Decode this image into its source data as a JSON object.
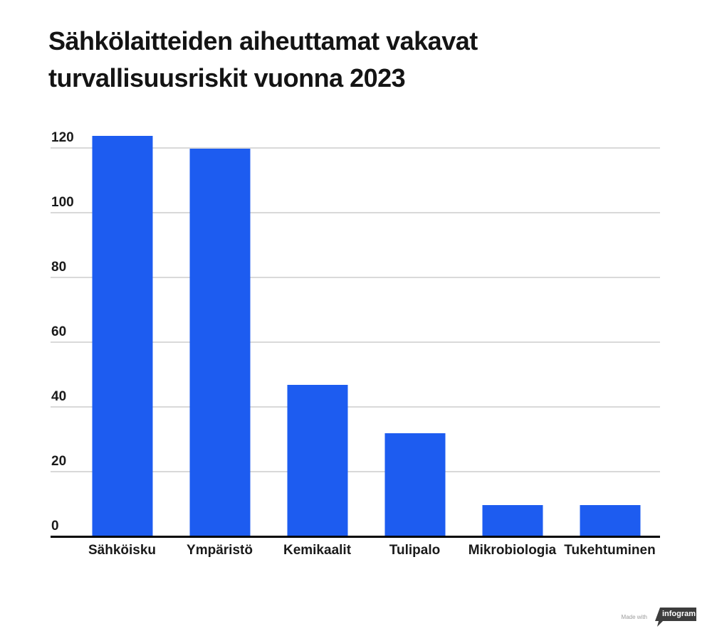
{
  "title": "Sähkölaitteiden aiheuttamat vakavat turvallisuusriskit vuonna 2023",
  "chart_data": {
    "type": "bar",
    "title": "Sähkölaitteiden aiheuttamat vakavat turvallisuusriskit vuonna 2023",
    "categories": [
      "Sähköisku",
      "Ympäristö",
      "Kemikaalit",
      "Tulipalo",
      "Mikrobiologia",
      "Tukehtuminen"
    ],
    "values": [
      124,
      120,
      47,
      32,
      10,
      10
    ],
    "xlabel": "",
    "ylabel": "",
    "ylim": [
      0,
      130
    ],
    "yticks": [
      0,
      20,
      40,
      60,
      80,
      100,
      120
    ],
    "grid": true,
    "legend": false
  },
  "colors": {
    "bar": "#1d5cf0",
    "gridline": "#d9d9d9",
    "axis": "#000000",
    "title_text": "#141414",
    "label_text": "#1a1a1a"
  },
  "watermark": {
    "prefix": "Made with",
    "brand": "infogram",
    "badge_bg": "#3d3d3d",
    "badge_text_color": "#ffffff"
  }
}
